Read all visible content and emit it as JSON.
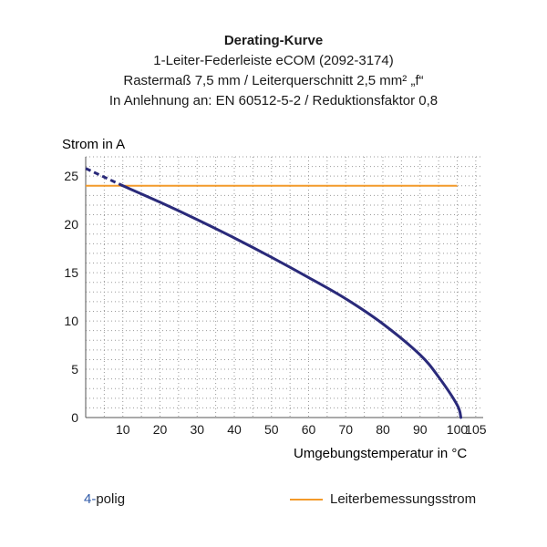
{
  "title": {
    "main": "Derating-Kurve",
    "line2": "1-Leiter-Federleiste eCOM (2092-3174)",
    "line3": "Rastermaß 7,5 mm / Leiterquerschnitt 2,5 mm² „f“",
    "line4": "In Anlehnung an: EN 60512-5-2 / Reduktionsfaktor 0,8"
  },
  "legend": {
    "series_number": "4-",
    "series_text": "polig",
    "rated_label": "Leiterbemessungsstrom"
  },
  "colors": {
    "curve": "#2a2a7a",
    "rated": "#f39a2a",
    "grid": "#9a9a9a",
    "legend_number": "#2f5aa8"
  },
  "chart_data": {
    "type": "line",
    "xlabel": "Umgebungstemperatur in °C",
    "ylabel": "Strom in A",
    "xlim": [
      0,
      107
    ],
    "ylim": [
      0,
      27
    ],
    "x_ticks": [
      10,
      20,
      30,
      40,
      50,
      60,
      70,
      80,
      90,
      100,
      105
    ],
    "y_ticks": [
      0,
      5,
      10,
      15,
      20,
      25
    ],
    "grid": "dotted",
    "series": [
      {
        "name": "4-polig",
        "x": [
          10,
          20,
          30,
          40,
          50,
          60,
          70,
          80,
          90,
          95,
          100,
          101
        ],
        "y": [
          24.0,
          22.3,
          20.5,
          18.6,
          16.6,
          14.5,
          12.3,
          9.7,
          6.5,
          4.2,
          1.3,
          0
        ],
        "extrapolated": {
          "x": [
            0,
            10
          ],
          "y": [
            25.8,
            24.0
          ]
        }
      },
      {
        "name": "Leiterbemessungsstrom",
        "x": [
          0,
          100
        ],
        "y": [
          24,
          24
        ]
      }
    ]
  }
}
